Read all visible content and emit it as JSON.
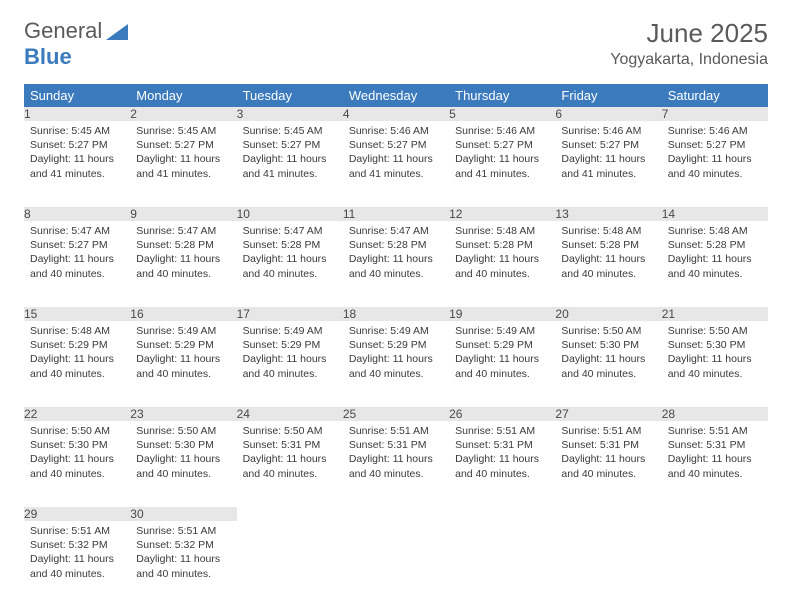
{
  "logo": {
    "text1": "General",
    "text2": "Blue"
  },
  "title": "June 2025",
  "location": "Yogyakarta, Indonesia",
  "colors": {
    "header_bg": "#3a7abd",
    "header_text": "#ffffff",
    "daynum_bg": "#e7e7e7",
    "rule": "#6a7a8a",
    "text": "#333333"
  },
  "day_headers": [
    "Sunday",
    "Monday",
    "Tuesday",
    "Wednesday",
    "Thursday",
    "Friday",
    "Saturday"
  ],
  "weeks": [
    [
      {
        "n": "1",
        "sr": "5:45 AM",
        "ss": "5:27 PM",
        "dl": "11 hours and 41 minutes."
      },
      {
        "n": "2",
        "sr": "5:45 AM",
        "ss": "5:27 PM",
        "dl": "11 hours and 41 minutes."
      },
      {
        "n": "3",
        "sr": "5:45 AM",
        "ss": "5:27 PM",
        "dl": "11 hours and 41 minutes."
      },
      {
        "n": "4",
        "sr": "5:46 AM",
        "ss": "5:27 PM",
        "dl": "11 hours and 41 minutes."
      },
      {
        "n": "5",
        "sr": "5:46 AM",
        "ss": "5:27 PM",
        "dl": "11 hours and 41 minutes."
      },
      {
        "n": "6",
        "sr": "5:46 AM",
        "ss": "5:27 PM",
        "dl": "11 hours and 41 minutes."
      },
      {
        "n": "7",
        "sr": "5:46 AM",
        "ss": "5:27 PM",
        "dl": "11 hours and 40 minutes."
      }
    ],
    [
      {
        "n": "8",
        "sr": "5:47 AM",
        "ss": "5:27 PM",
        "dl": "11 hours and 40 minutes."
      },
      {
        "n": "9",
        "sr": "5:47 AM",
        "ss": "5:28 PM",
        "dl": "11 hours and 40 minutes."
      },
      {
        "n": "10",
        "sr": "5:47 AM",
        "ss": "5:28 PM",
        "dl": "11 hours and 40 minutes."
      },
      {
        "n": "11",
        "sr": "5:47 AM",
        "ss": "5:28 PM",
        "dl": "11 hours and 40 minutes."
      },
      {
        "n": "12",
        "sr": "5:48 AM",
        "ss": "5:28 PM",
        "dl": "11 hours and 40 minutes."
      },
      {
        "n": "13",
        "sr": "5:48 AM",
        "ss": "5:28 PM",
        "dl": "11 hours and 40 minutes."
      },
      {
        "n": "14",
        "sr": "5:48 AM",
        "ss": "5:28 PM",
        "dl": "11 hours and 40 minutes."
      }
    ],
    [
      {
        "n": "15",
        "sr": "5:48 AM",
        "ss": "5:29 PM",
        "dl": "11 hours and 40 minutes."
      },
      {
        "n": "16",
        "sr": "5:49 AM",
        "ss": "5:29 PM",
        "dl": "11 hours and 40 minutes."
      },
      {
        "n": "17",
        "sr": "5:49 AM",
        "ss": "5:29 PM",
        "dl": "11 hours and 40 minutes."
      },
      {
        "n": "18",
        "sr": "5:49 AM",
        "ss": "5:29 PM",
        "dl": "11 hours and 40 minutes."
      },
      {
        "n": "19",
        "sr": "5:49 AM",
        "ss": "5:29 PM",
        "dl": "11 hours and 40 minutes."
      },
      {
        "n": "20",
        "sr": "5:50 AM",
        "ss": "5:30 PM",
        "dl": "11 hours and 40 minutes."
      },
      {
        "n": "21",
        "sr": "5:50 AM",
        "ss": "5:30 PM",
        "dl": "11 hours and 40 minutes."
      }
    ],
    [
      {
        "n": "22",
        "sr": "5:50 AM",
        "ss": "5:30 PM",
        "dl": "11 hours and 40 minutes."
      },
      {
        "n": "23",
        "sr": "5:50 AM",
        "ss": "5:30 PM",
        "dl": "11 hours and 40 minutes."
      },
      {
        "n": "24",
        "sr": "5:50 AM",
        "ss": "5:31 PM",
        "dl": "11 hours and 40 minutes."
      },
      {
        "n": "25",
        "sr": "5:51 AM",
        "ss": "5:31 PM",
        "dl": "11 hours and 40 minutes."
      },
      {
        "n": "26",
        "sr": "5:51 AM",
        "ss": "5:31 PM",
        "dl": "11 hours and 40 minutes."
      },
      {
        "n": "27",
        "sr": "5:51 AM",
        "ss": "5:31 PM",
        "dl": "11 hours and 40 minutes."
      },
      {
        "n": "28",
        "sr": "5:51 AM",
        "ss": "5:31 PM",
        "dl": "11 hours and 40 minutes."
      }
    ],
    [
      {
        "n": "29",
        "sr": "5:51 AM",
        "ss": "5:32 PM",
        "dl": "11 hours and 40 minutes."
      },
      {
        "n": "30",
        "sr": "5:51 AM",
        "ss": "5:32 PM",
        "dl": "11 hours and 40 minutes."
      },
      null,
      null,
      null,
      null,
      null
    ]
  ],
  "labels": {
    "sunrise": "Sunrise:",
    "sunset": "Sunset:",
    "daylight": "Daylight:"
  }
}
